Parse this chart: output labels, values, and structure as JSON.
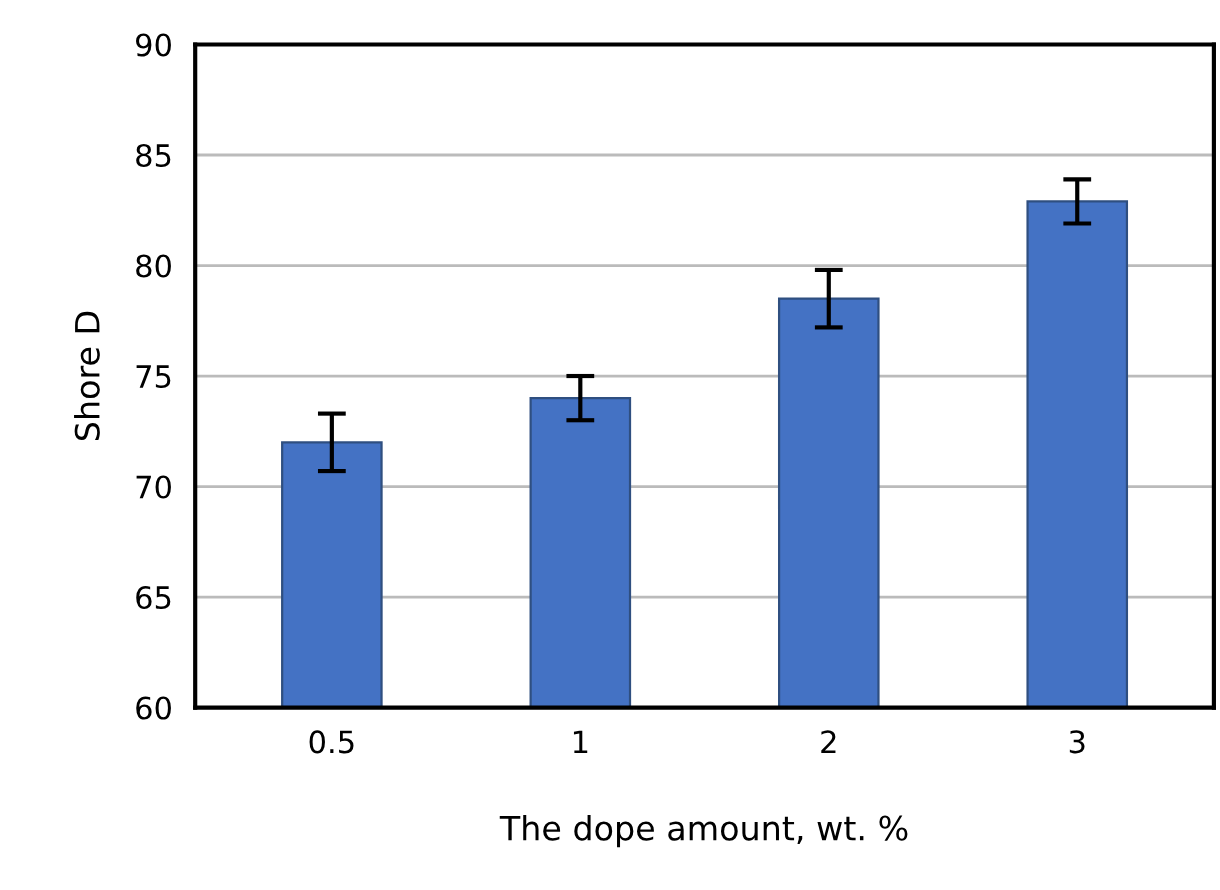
{
  "chart_data": {
    "type": "bar",
    "xlabel": "The dope amount, wt. %",
    "ylabel": "Shore D",
    "categories": [
      "0.5",
      "1",
      "2",
      "3"
    ],
    "values": [
      72.0,
      74.0,
      78.5,
      82.9
    ],
    "errors": [
      1.3,
      1.0,
      1.3,
      1.0
    ],
    "color": "#4472c4",
    "ylim": [
      60,
      90
    ],
    "yticks": [
      60,
      65,
      70,
      75,
      80,
      85,
      90
    ],
    "grid": "y"
  }
}
